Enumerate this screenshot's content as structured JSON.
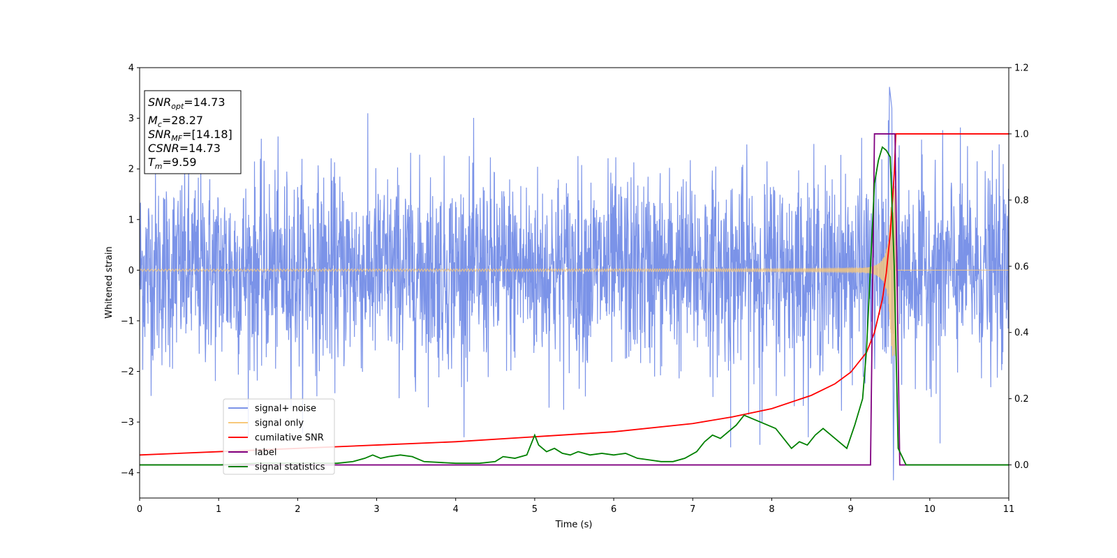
{
  "chart_data": {
    "type": "line",
    "xlabel": "Time (s)",
    "ylabel": "Whitened strain",
    "xlim": [
      0,
      11
    ],
    "ylim_left": [
      -4.5,
      4.0
    ],
    "ylim_right": [
      -0.1,
      1.2
    ],
    "x_ticks": [
      "0",
      "1",
      "2",
      "3",
      "4",
      "5",
      "6",
      "7",
      "8",
      "9",
      "10",
      "11"
    ],
    "y_ticks_left": [
      "−4",
      "−3",
      "−2",
      "−1",
      "0",
      "1",
      "2",
      "3",
      "4"
    ],
    "y_ticks_right": [
      "0.0",
      "0.2",
      "0.4",
      "0.6",
      "0.8",
      "1.0",
      "1.2"
    ],
    "info_box": {
      "snr_opt": {
        "base": "SNR",
        "sub": "opt",
        "value": "=14.73"
      },
      "mc": {
        "base": "M",
        "sub": "c",
        "value": "=28.27"
      },
      "snr_mf": {
        "base": "SNR",
        "sub": "MF",
        "value": "=[14.18]"
      },
      "csnr": {
        "base": "CSNR",
        "value": "=14.73"
      },
      "tm": {
        "base": "T",
        "sub": "m",
        "value": "=9.59"
      }
    },
    "legend": {
      "placement": "lower-left",
      "entries": [
        {
          "name": "signal+ noise",
          "color": "#7b93e8"
        },
        {
          "name": "signal only",
          "color": "#f7c87a"
        },
        {
          "name": "cumilative SNR",
          "color": "#ff0000"
        },
        {
          "name": "label",
          "color": "#800080"
        },
        {
          "name": "signal statistics",
          "color": "#008000"
        }
      ]
    },
    "series": [
      {
        "name": "signal+ noise",
        "axis": "left",
        "color": "#7b93e8",
        "description": "noise std≈0.9 with burst near 9.5",
        "spike_points": [
          [
            9.49,
            3.62
          ],
          [
            9.54,
            -4.15
          ],
          [
            9.52,
            3.2
          ],
          [
            7.48,
            -3.5
          ],
          [
            7.85,
            -3.45
          ],
          [
            10.13,
            -3.42
          ]
        ]
      },
      {
        "name": "signal only",
        "axis": "left",
        "color": "#f7c87a",
        "chirp_end": 9.57
      },
      {
        "name": "cumilative SNR",
        "axis": "right",
        "color": "#ff0000",
        "x": [
          0,
          1,
          2,
          3,
          4,
          5,
          6,
          7,
          7.5,
          8,
          8.5,
          8.8,
          9.0,
          9.2,
          9.3,
          9.4,
          9.45,
          9.5,
          9.55,
          9.57,
          9.6,
          11
        ],
        "y": [
          0.03,
          0.04,
          0.05,
          0.06,
          0.07,
          0.085,
          0.1,
          0.125,
          0.145,
          0.17,
          0.21,
          0.245,
          0.28,
          0.34,
          0.4,
          0.5,
          0.58,
          0.7,
          0.88,
          1.0,
          1.0,
          1.0
        ]
      },
      {
        "name": "label",
        "axis": "right",
        "color": "#800080",
        "x": [
          0,
          9.25,
          9.3,
          9.56,
          9.62,
          11
        ],
        "y": [
          0.0,
          0.0,
          1.0,
          1.0,
          0.0,
          0.0
        ]
      },
      {
        "name": "signal statistics",
        "axis": "right",
        "color": "#008000",
        "x": [
          0,
          0.5,
          1,
          1.5,
          2,
          2.5,
          2.7,
          2.85,
          2.95,
          3.05,
          3.15,
          3.3,
          3.45,
          3.6,
          4.0,
          4.3,
          4.5,
          4.6,
          4.75,
          4.9,
          5.0,
          5.05,
          5.15,
          5.25,
          5.35,
          5.45,
          5.55,
          5.7,
          5.85,
          6.0,
          6.15,
          6.3,
          6.45,
          6.6,
          6.75,
          6.9,
          7.05,
          7.15,
          7.25,
          7.35,
          7.45,
          7.55,
          7.65,
          7.75,
          7.85,
          7.95,
          8.05,
          8.15,
          8.25,
          8.35,
          8.45,
          8.55,
          8.65,
          8.75,
          8.85,
          8.95,
          9.05,
          9.15,
          9.2,
          9.25,
          9.3,
          9.35,
          9.4,
          9.45,
          9.5,
          9.55,
          9.6,
          9.7,
          10,
          11
        ],
        "y": [
          0.0,
          0.0,
          0.0,
          0.005,
          0.005,
          0.005,
          0.01,
          0.02,
          0.03,
          0.02,
          0.025,
          0.03,
          0.025,
          0.01,
          0.005,
          0.005,
          0.01,
          0.025,
          0.02,
          0.03,
          0.09,
          0.06,
          0.04,
          0.05,
          0.035,
          0.03,
          0.04,
          0.03,
          0.035,
          0.03,
          0.035,
          0.02,
          0.015,
          0.01,
          0.01,
          0.02,
          0.04,
          0.07,
          0.09,
          0.08,
          0.1,
          0.12,
          0.15,
          0.14,
          0.13,
          0.12,
          0.11,
          0.08,
          0.05,
          0.07,
          0.06,
          0.09,
          0.11,
          0.09,
          0.07,
          0.05,
          0.12,
          0.2,
          0.35,
          0.6,
          0.85,
          0.92,
          0.96,
          0.95,
          0.93,
          0.6,
          0.05,
          0.0,
          0.0,
          0.0
        ]
      }
    ]
  }
}
